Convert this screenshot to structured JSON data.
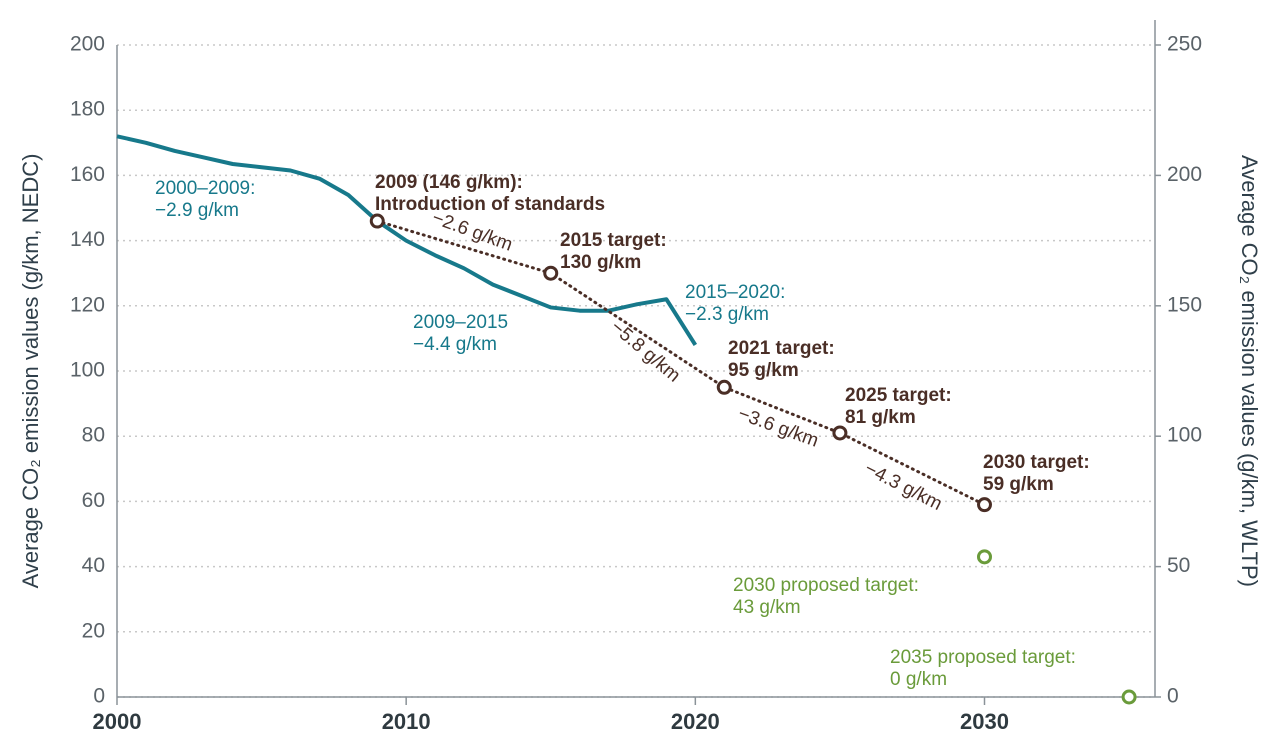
{
  "chart_data": {
    "type": "line",
    "y_label": "Average CO₂ emission values (g/km, NEDC)",
    "y2_label": "Average CO₂ emission values (g/km, WLTP)",
    "xlim": [
      2000,
      2036
    ],
    "xticks": [
      2000,
      2010,
      2020,
      2030
    ],
    "ylim": [
      0,
      200
    ],
    "yticks": [
      0,
      20,
      40,
      60,
      80,
      100,
      120,
      140,
      160,
      180,
      200
    ],
    "y2lim": [
      0,
      250
    ],
    "y2ticks": [
      0,
      50,
      100,
      150,
      200,
      250
    ],
    "grid": true,
    "series": [
      {
        "color": "#17798b",
        "style": "solid",
        "x": [
          2000,
          2001,
          2002,
          2003,
          2004,
          2005,
          2006,
          2007,
          2008,
          2009,
          2010,
          2011,
          2012,
          2013,
          2014,
          2015,
          2016,
          2017,
          2018,
          2019,
          2020
        ],
        "values": [
          172,
          170,
          167.5,
          165.5,
          163.5,
          162.5,
          161.5,
          159,
          154,
          146,
          140,
          135.5,
          131.5,
          126.5,
          123,
          119.5,
          118.5,
          118.5,
          120.5,
          122,
          108
        ]
      },
      {
        "color": "#4a2e26",
        "style": "dotted",
        "markers": true,
        "x": [
          2009,
          2015,
          2021,
          2025,
          2030
        ],
        "values": [
          146,
          130,
          95,
          81,
          59
        ]
      },
      {
        "color": "#6a9b3a",
        "style": "none",
        "markers": true,
        "x": [
          2030,
          2035
        ],
        "values": [
          43,
          0
        ]
      }
    ],
    "annotations": [
      {
        "color": "#17798b",
        "lines": [
          "2000–2009:",
          "−2.9 g/km"
        ]
      },
      {
        "color": "#4a2e26",
        "lines": [
          "2009 (146 g/km):",
          "Introduction of standards"
        ]
      },
      {
        "color": "#4a2e26",
        "lines": [
          "2015 target:",
          "130 g/km"
        ]
      },
      {
        "color": "#17798b",
        "lines": [
          "2015–2020:",
          "−2.3 g/km"
        ]
      },
      {
        "color": "#17798b",
        "lines": [
          "2009–2015",
          "−4.4 g/km"
        ]
      },
      {
        "color": "#4a2e26",
        "lines": [
          "2021 target:",
          "95 g/km"
        ]
      },
      {
        "color": "#4a2e26",
        "lines": [
          "2025 target:",
          "81 g/km"
        ]
      },
      {
        "color": "#4a2e26",
        "lines": [
          "2030 target:",
          "59 g/km"
        ]
      },
      {
        "color": "#6a9b3a",
        "lines": [
          "2030 proposed target:",
          "43 g/km"
        ]
      },
      {
        "color": "#6a9b3a",
        "lines": [
          "2035 proposed target:",
          "0 g/km"
        ]
      }
    ],
    "rate_labels": [
      "−2.6 g/km",
      "−5.8 g/km",
      "−3.6 g/km",
      "−4.3 g/km"
    ]
  }
}
